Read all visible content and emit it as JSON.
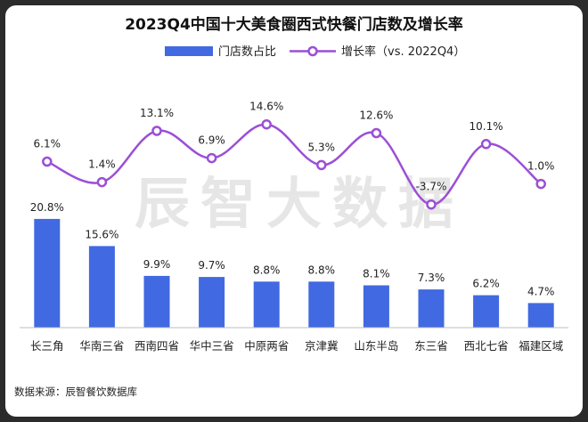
{
  "chart_data": {
    "type": "bar+line",
    "title": "2023Q4中国十大美食圈西式快餐门店数及增长率",
    "categories": [
      "长三角",
      "华南三省",
      "西南四省",
      "华中三省",
      "中原两省",
      "京津冀",
      "山东半岛",
      "东三省",
      "西北七省",
      "福建区域"
    ],
    "series": [
      {
        "name": "门店数占比",
        "type": "bar",
        "values": [
          20.8,
          15.6,
          9.9,
          9.7,
          8.8,
          8.8,
          8.1,
          7.3,
          6.2,
          4.7
        ],
        "labels": [
          "20.8%",
          "15.6%",
          "9.9%",
          "9.7%",
          "8.8%",
          "8.8%",
          "8.1%",
          "7.3%",
          "6.2%",
          "4.7%"
        ],
        "color": "#4169e1"
      },
      {
        "name": "增长率（vs. 2022Q4）",
        "type": "line",
        "values": [
          6.1,
          1.4,
          13.1,
          6.9,
          14.6,
          5.3,
          12.6,
          -3.7,
          10.1,
          1.0
        ],
        "labels": [
          "6.1%",
          "1.4%",
          "13.1%",
          "6.9%",
          "14.6%",
          "5.3%",
          "12.6%",
          "-3.7%",
          "10.1%",
          "1.0%"
        ],
        "color": "#9b4fd6"
      }
    ],
    "legend_position": "top-center",
    "grid": false
  },
  "watermark": "辰智大数据",
  "source": "数据来源：辰智餐饮数据库"
}
